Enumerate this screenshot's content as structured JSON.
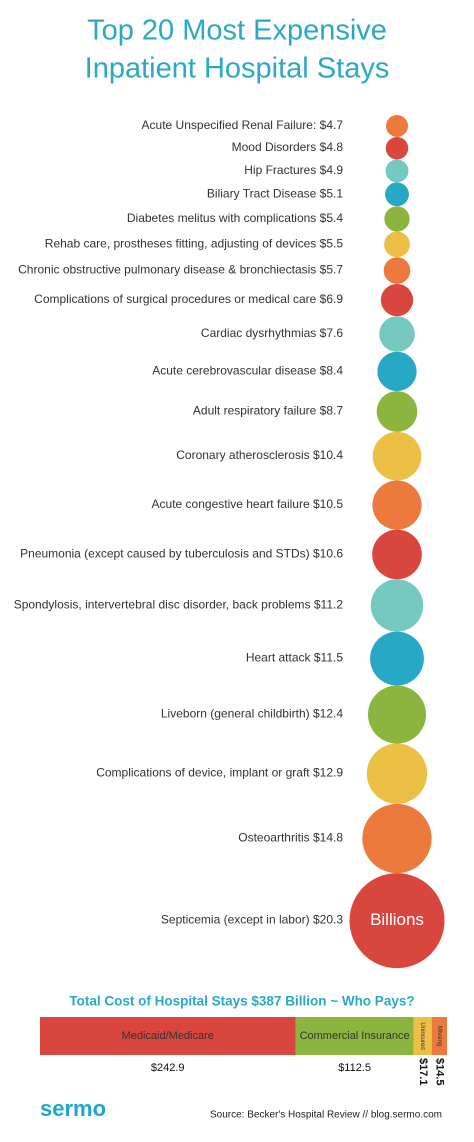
{
  "chart_data": [
    {
      "type": "bubble",
      "title": [
        "Top 20 Most Expensive",
        "Inpatient Hospital Stays"
      ],
      "categories": [
        "Acute Unspecified Renal Failure:",
        "Mood Disorders",
        "Hip Fractures",
        "Biliary Tract Disease",
        "Diabetes melitus with complications",
        "Rehab care, prostheses fitting, adjusting of devices",
        "Chronic obstructive pulmonary disease & bronchiectasis",
        "Complications of surgical procedures or medical care",
        "Cardiac dysrhythmias",
        "Acute cerebrovascular disease",
        "Adult respiratory failure",
        "Coronary atherosclerosis",
        "Acute congestive heart failure",
        "Pneumonia (except caused by tuberculosis and STDs)",
        "Spondylosis, intervertebral disc disorder, back problems",
        "Heart attack",
        "Liveborn (general childbirth)",
        "Complications of device, implant or graft",
        "Osteoarthritis",
        "Septicemia (except in labor)"
      ],
      "values": [
        4.7,
        4.8,
        4.9,
        5.1,
        5.4,
        5.5,
        5.7,
        6.9,
        7.6,
        8.4,
        8.7,
        10.4,
        10.5,
        10.6,
        11.2,
        11.5,
        12.4,
        12.9,
        14.8,
        20.3
      ],
      "value_labels": [
        "$4.7",
        "$4.8",
        "$4.9",
        "$5.1",
        "$5.4",
        "$5.5",
        "$5.7",
        "$6.9",
        "$7.6",
        "$8.4",
        "$8.7",
        "$10.4",
        "$10.5",
        "$10.6",
        "$11.2",
        "$11.5",
        "$12.4",
        "$12.9",
        "$14.8",
        "$20.3"
      ],
      "colors": [
        "#ec7a3c",
        "#d9463e",
        "#76c9bf",
        "#27a9c6",
        "#8bb53f",
        "#ecc045",
        "#ec7a3c",
        "#d9463e",
        "#76c9bf",
        "#27a9c6",
        "#8bb53f",
        "#ecc045",
        "#ec7a3c",
        "#d9463e",
        "#76c9bf",
        "#27a9c6",
        "#8bb53f",
        "#ecc045",
        "#ec7a3c",
        "#d9463e"
      ],
      "annotation": "Billions"
    },
    {
      "type": "stacked_bar",
      "title": "Total Cost of Hospital Stays $387 Billion ~ Who Pays?",
      "series": [
        {
          "name": "Medicaid/Medicare",
          "color": "#d9463e",
          "values": [
            242.9
          ],
          "value_labels": [
            "$242.9"
          ]
        },
        {
          "name": "Commercial Insurance",
          "color": "#8bb53f",
          "values": [
            112.5
          ],
          "value_labels": [
            "$112.5"
          ]
        },
        {
          "name": "Uninsured",
          "color": "#ecc045",
          "values": [
            17.1
          ],
          "value_labels": [
            "$17.1"
          ]
        },
        {
          "name": "Missing",
          "color": "#ec7a3c",
          "values": [
            14.5
          ],
          "value_labels": [
            "$14.5"
          ]
        }
      ]
    }
  ],
  "footer": {
    "logo": "sermo",
    "source": "Source: Becker's Hospital Review // blog.sermo.com"
  }
}
